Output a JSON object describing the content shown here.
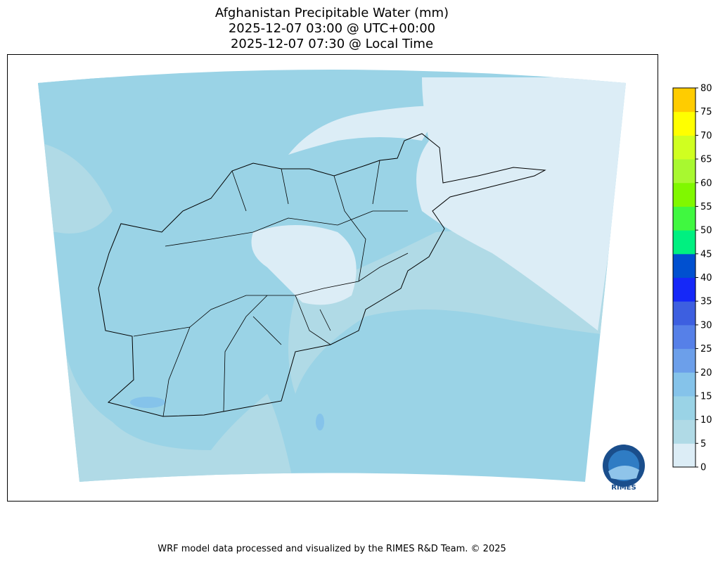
{
  "title": {
    "line1": "Afghanistan Precipitable Water (mm)",
    "line2": "2025-12-07 03:00 @ UTC+00:00",
    "line3": "2025-12-07 07:30 @ Local Time"
  },
  "colorbar": {
    "ticks": [
      "0",
      "5",
      "10",
      "15",
      "20",
      "25",
      "30",
      "35",
      "40",
      "45",
      "50",
      "55",
      "60",
      "65",
      "70",
      "75",
      "80"
    ],
    "colors": [
      "#dcedf6",
      "#b0dae6",
      "#9ad3e6",
      "#85c3ea",
      "#6c9fea",
      "#5680e8",
      "#3d5fe0",
      "#1528f8",
      "#0050d0",
      "#00f080",
      "#40f840",
      "#80f800",
      "#a8f830",
      "#d0ff20",
      "#ffff00",
      "#ffcc00"
    ]
  },
  "logo": {
    "text": "RIMES",
    "ring_text": "Regional Integrated Multi-Hazard Early Warning System"
  },
  "footer": "WRF model data processed and visualized by the RIMES R&D Team. © 2025"
}
